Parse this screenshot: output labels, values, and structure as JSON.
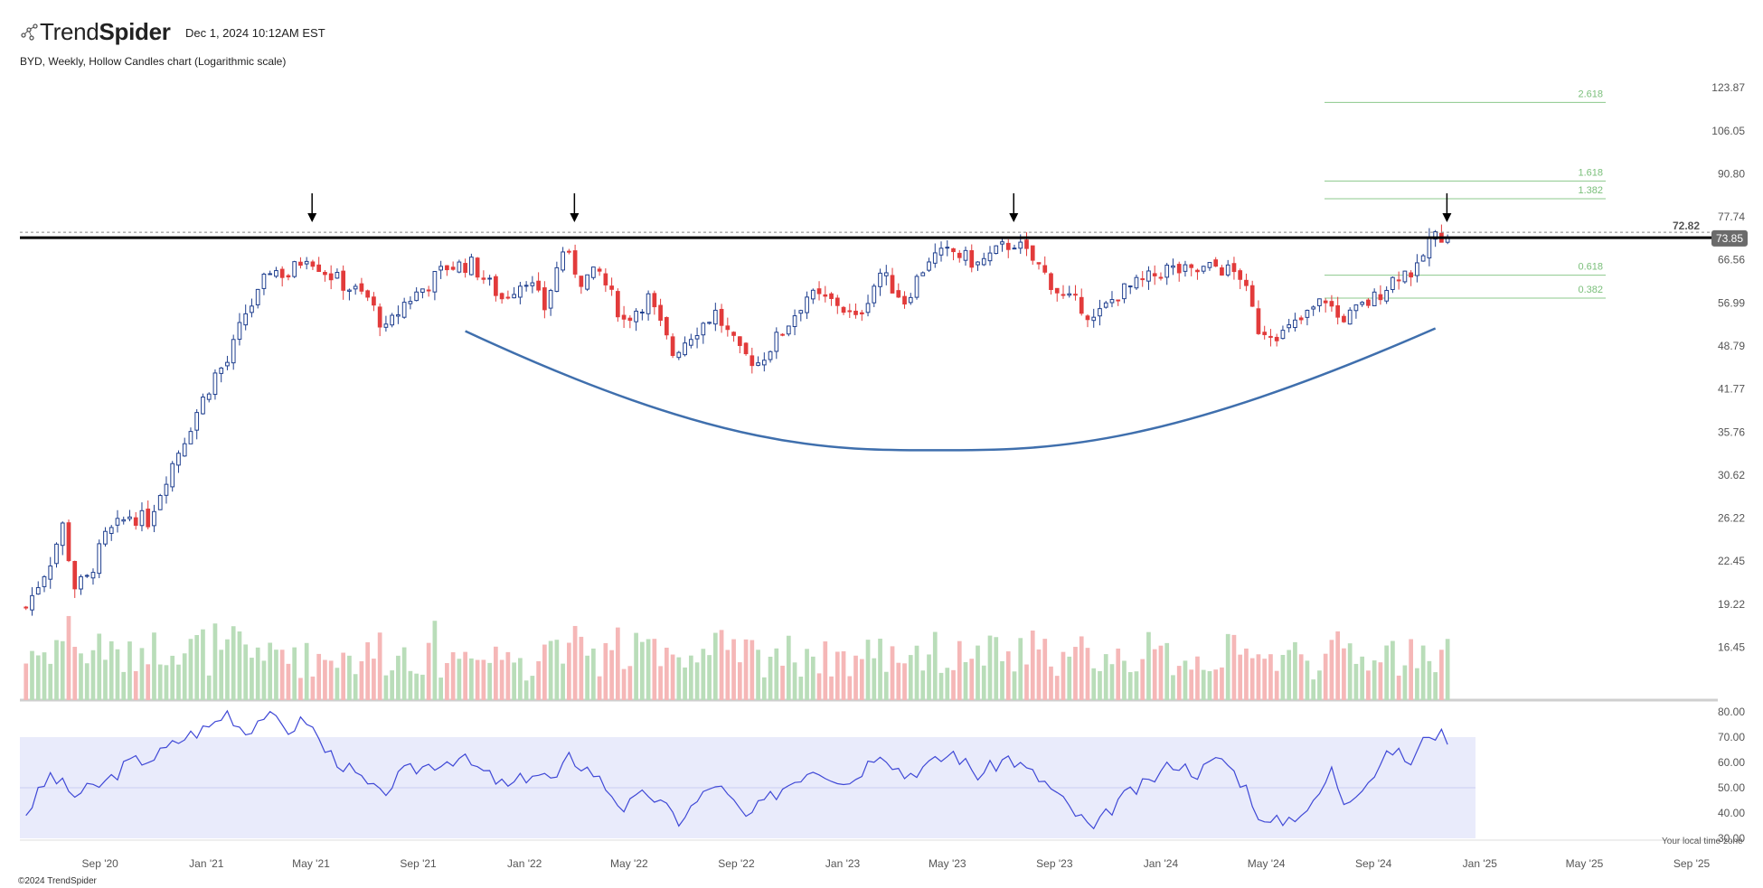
{
  "header": {
    "brand_light": "Trend",
    "brand_bold": "Spider",
    "brand_icon": "spider-dots-icon",
    "timestamp": "Dec 1, 2024 10:12AM EST",
    "subtitle": "BYD, Weekly, Hollow Candles chart (Logarithmic scale)"
  },
  "footer": {
    "copyright": "©2024 TrendSpider",
    "timezone_note": "Your local time zone"
  },
  "colors": {
    "up": "#1f3f8f",
    "down": "#e23b3b",
    "vol_up": "#b9ddb9",
    "vol_down": "#f5b7b7",
    "rsi_line": "#3f48d6",
    "rsi_band": "#e9ebfb",
    "fib": "#8cc88c",
    "fib_text": "#7abf7a",
    "arc": "#3f6fad",
    "resistance": "#000000"
  },
  "chart_data": {
    "type": "candlestick",
    "ticker": "BYD",
    "interval": "Weekly",
    "scale": "log",
    "ylim": [
      13.6,
      131
    ],
    "y_ticks": [
      "123.87",
      "106.05",
      "90.80",
      "77.74",
      "66.56",
      "56.99",
      "48.79",
      "41.77",
      "35.76",
      "30.62",
      "26.22",
      "22.45",
      "19.22",
      "16.45"
    ],
    "x_ticks": [
      "Sep '20",
      "Jan '21",
      "May '21",
      "Sep '21",
      "Jan '22",
      "May '22",
      "Sep '22",
      "Jan '23",
      "May '23",
      "Sep '23",
      "Jan '24",
      "May '24",
      "Sep '24",
      "Jan '25",
      "May '25",
      "Sep '25"
    ],
    "x_range": [
      "2020-06",
      "2025-10"
    ],
    "close_series": [
      {
        "date": "2020-06-08",
        "close": 19.0
      },
      {
        "date": "2020-07-06",
        "close": 22.5
      },
      {
        "date": "2020-07-20",
        "close": 25.5
      },
      {
        "date": "2020-08-03",
        "close": 20.5
      },
      {
        "date": "2020-08-17",
        "close": 21.0
      },
      {
        "date": "2020-09-07",
        "close": 24.5
      },
      {
        "date": "2020-10-05",
        "close": 26.5
      },
      {
        "date": "2020-10-26",
        "close": 26.0
      },
      {
        "date": "2020-11-16",
        "close": 30.5
      },
      {
        "date": "2020-12-07",
        "close": 35.0
      },
      {
        "date": "2020-12-21",
        "close": 38.5
      },
      {
        "date": "2021-01-11",
        "close": 44.0
      },
      {
        "date": "2021-01-25",
        "close": 46.0
      },
      {
        "date": "2021-02-15",
        "close": 55.0
      },
      {
        "date": "2021-03-01",
        "close": 58.5
      },
      {
        "date": "2021-03-15",
        "close": 64.5
      },
      {
        "date": "2021-04-05",
        "close": 63.0
      },
      {
        "date": "2021-04-26",
        "close": 68.0
      },
      {
        "date": "2021-05-17",
        "close": 64.0
      },
      {
        "date": "2021-06-07",
        "close": 61.0
      },
      {
        "date": "2021-07-05",
        "close": 58.0
      },
      {
        "date": "2021-07-26",
        "close": 51.5
      },
      {
        "date": "2021-08-16",
        "close": 57.0
      },
      {
        "date": "2021-09-06",
        "close": 60.0
      },
      {
        "date": "2021-10-04",
        "close": 65.0
      },
      {
        "date": "2021-11-01",
        "close": 65.5
      },
      {
        "date": "2021-12-06",
        "close": 58.0
      },
      {
        "date": "2022-01-03",
        "close": 62.5
      },
      {
        "date": "2022-01-24",
        "close": 56.0
      },
      {
        "date": "2022-02-14",
        "close": 69.0
      },
      {
        "date": "2022-03-07",
        "close": 62.0
      },
      {
        "date": "2022-03-28",
        "close": 63.5
      },
      {
        "date": "2022-04-25",
        "close": 53.5
      },
      {
        "date": "2022-05-23",
        "close": 58.0
      },
      {
        "date": "2022-06-20",
        "close": 47.5
      },
      {
        "date": "2022-07-11",
        "close": 51.0
      },
      {
        "date": "2022-08-08",
        "close": 55.0
      },
      {
        "date": "2022-09-05",
        "close": 47.5
      },
      {
        "date": "2022-09-26",
        "close": 46.0
      },
      {
        "date": "2022-10-24",
        "close": 51.5
      },
      {
        "date": "2022-11-21",
        "close": 58.5
      },
      {
        "date": "2022-12-26",
        "close": 57.0
      },
      {
        "date": "2023-01-16",
        "close": 53.5
      },
      {
        "date": "2023-02-13",
        "close": 63.5
      },
      {
        "date": "2023-03-13",
        "close": 57.5
      },
      {
        "date": "2023-04-10",
        "close": 67.0
      },
      {
        "date": "2023-05-08",
        "close": 68.5
      },
      {
        "date": "2023-06-05",
        "close": 65.5
      },
      {
        "date": "2023-07-03",
        "close": 69.5
      },
      {
        "date": "2023-07-17",
        "close": 71.0
      },
      {
        "date": "2023-08-14",
        "close": 65.0
      },
      {
        "date": "2023-09-11",
        "close": 58.0
      },
      {
        "date": "2023-10-02",
        "close": 56.5
      },
      {
        "date": "2023-10-16",
        "close": 53.5
      },
      {
        "date": "2023-11-13",
        "close": 59.0
      },
      {
        "date": "2023-12-11",
        "close": 61.5
      },
      {
        "date": "2024-01-08",
        "close": 64.5
      },
      {
        "date": "2024-02-05",
        "close": 63.5
      },
      {
        "date": "2024-03-04",
        "close": 65.0
      },
      {
        "date": "2024-04-01",
        "close": 63.0
      },
      {
        "date": "2024-04-22",
        "close": 52.0
      },
      {
        "date": "2024-05-20",
        "close": 51.0
      },
      {
        "date": "2024-06-10",
        "close": 53.5
      },
      {
        "date": "2024-07-08",
        "close": 58.0
      },
      {
        "date": "2024-07-22",
        "close": 54.0
      },
      {
        "date": "2024-08-05",
        "close": 54.5
      },
      {
        "date": "2024-09-02",
        "close": 58.0
      },
      {
        "date": "2024-09-30",
        "close": 63.5
      },
      {
        "date": "2024-10-21",
        "close": 64.0
      },
      {
        "date": "2024-11-04",
        "close": 71.5
      },
      {
        "date": "2024-11-18",
        "close": 73.0
      },
      {
        "date": "2024-11-25",
        "close": 73.85
      }
    ],
    "last_price": "73.85",
    "resistance": {
      "value": 72.82,
      "label": "72.82"
    },
    "fib_levels": [
      {
        "label": "2.618",
        "value": 117.5
      },
      {
        "label": "1.618",
        "value": 88.5
      },
      {
        "label": "1.382",
        "value": 83.0
      },
      {
        "label": "0.618",
        "value": 63.0
      },
      {
        "label": "0.382",
        "value": 58.0
      }
    ],
    "arrows": [
      {
        "date": "2021-04-26",
        "note": "touch"
      },
      {
        "date": "2022-02-21",
        "note": "touch"
      },
      {
        "date": "2023-07-10",
        "note": "touch"
      },
      {
        "date": "2024-11-18",
        "note": "touch"
      }
    ],
    "cup_arc": {
      "start": "2021-10-25",
      "bottom": "2023-05-01",
      "end": "2024-11-11",
      "start_value": 51.5,
      "bottom_value": 33.5,
      "end_value": 52.0
    },
    "rsi": {
      "ylim": [
        30,
        80
      ],
      "y_ticks": [
        "80.00",
        "70.00",
        "60.00",
        "50.00",
        "40.00",
        "30.00"
      ],
      "band": [
        30,
        70
      ],
      "mid": 50,
      "series": [
        {
          "date": "2020-06-08",
          "value": 40
        },
        {
          "date": "2020-07-06",
          "value": 55
        },
        {
          "date": "2020-08-03",
          "value": 47
        },
        {
          "date": "2020-09-07",
          "value": 52
        },
        {
          "date": "2020-10-05",
          "value": 60
        },
        {
          "date": "2020-11-02",
          "value": 62
        },
        {
          "date": "2020-12-07",
          "value": 70
        },
        {
          "date": "2021-01-04",
          "value": 74
        },
        {
          "date": "2021-01-25",
          "value": 80
        },
        {
          "date": "2021-02-15",
          "value": 72
        },
        {
          "date": "2021-03-08",
          "value": 79
        },
        {
          "date": "2021-04-05",
          "value": 73
        },
        {
          "date": "2021-04-26",
          "value": 77
        },
        {
          "date": "2021-05-17",
          "value": 65
        },
        {
          "date": "2021-06-21",
          "value": 55
        },
        {
          "date": "2021-07-19",
          "value": 47
        },
        {
          "date": "2021-08-16",
          "value": 56
        },
        {
          "date": "2021-09-13",
          "value": 59
        },
        {
          "date": "2021-10-18",
          "value": 62
        },
        {
          "date": "2021-11-15",
          "value": 56
        },
        {
          "date": "2021-12-13",
          "value": 50
        },
        {
          "date": "2022-01-10",
          "value": 56
        },
        {
          "date": "2022-02-07",
          "value": 53
        },
        {
          "date": "2022-02-21",
          "value": 62
        },
        {
          "date": "2022-03-21",
          "value": 56
        },
        {
          "date": "2022-04-25",
          "value": 42
        },
        {
          "date": "2022-05-23",
          "value": 48
        },
        {
          "date": "2022-06-27",
          "value": 37
        },
        {
          "date": "2022-08-08",
          "value": 52
        },
        {
          "date": "2022-09-12",
          "value": 38
        },
        {
          "date": "2022-10-24",
          "value": 50
        },
        {
          "date": "2022-11-28",
          "value": 58
        },
        {
          "date": "2023-01-09",
          "value": 52
        },
        {
          "date": "2023-02-13",
          "value": 65
        },
        {
          "date": "2023-03-13",
          "value": 55
        },
        {
          "date": "2023-04-17",
          "value": 60
        },
        {
          "date": "2023-05-08",
          "value": 64
        },
        {
          "date": "2023-06-05",
          "value": 55
        },
        {
          "date": "2023-07-10",
          "value": 62
        },
        {
          "date": "2023-08-21",
          "value": 52
        },
        {
          "date": "2023-09-18",
          "value": 42
        },
        {
          "date": "2023-10-16",
          "value": 33
        },
        {
          "date": "2023-11-13",
          "value": 45
        },
        {
          "date": "2023-12-18",
          "value": 52
        },
        {
          "date": "2024-01-15",
          "value": 60
        },
        {
          "date": "2024-02-12",
          "value": 56
        },
        {
          "date": "2024-03-11",
          "value": 62
        },
        {
          "date": "2024-04-08",
          "value": 50
        },
        {
          "date": "2024-04-29",
          "value": 35
        },
        {
          "date": "2024-05-27",
          "value": 38
        },
        {
          "date": "2024-06-24",
          "value": 43
        },
        {
          "date": "2024-07-15",
          "value": 57
        },
        {
          "date": "2024-07-29",
          "value": 45
        },
        {
          "date": "2024-08-26",
          "value": 53
        },
        {
          "date": "2024-09-23",
          "value": 65
        },
        {
          "date": "2024-10-14",
          "value": 60
        },
        {
          "date": "2024-11-04",
          "value": 72
        },
        {
          "date": "2024-11-25",
          "value": 70
        }
      ]
    },
    "volume": {
      "note": "weekly volume bars, relative heights",
      "levels": [
        0.9,
        0.7,
        0.8,
        0.5,
        0.6,
        0.4,
        0.3,
        0.35,
        0.45,
        0.55,
        0.3,
        0.4,
        0.45,
        0.3,
        0.35,
        0.95,
        0.3,
        0.4,
        0.5,
        0.3
      ]
    }
  }
}
